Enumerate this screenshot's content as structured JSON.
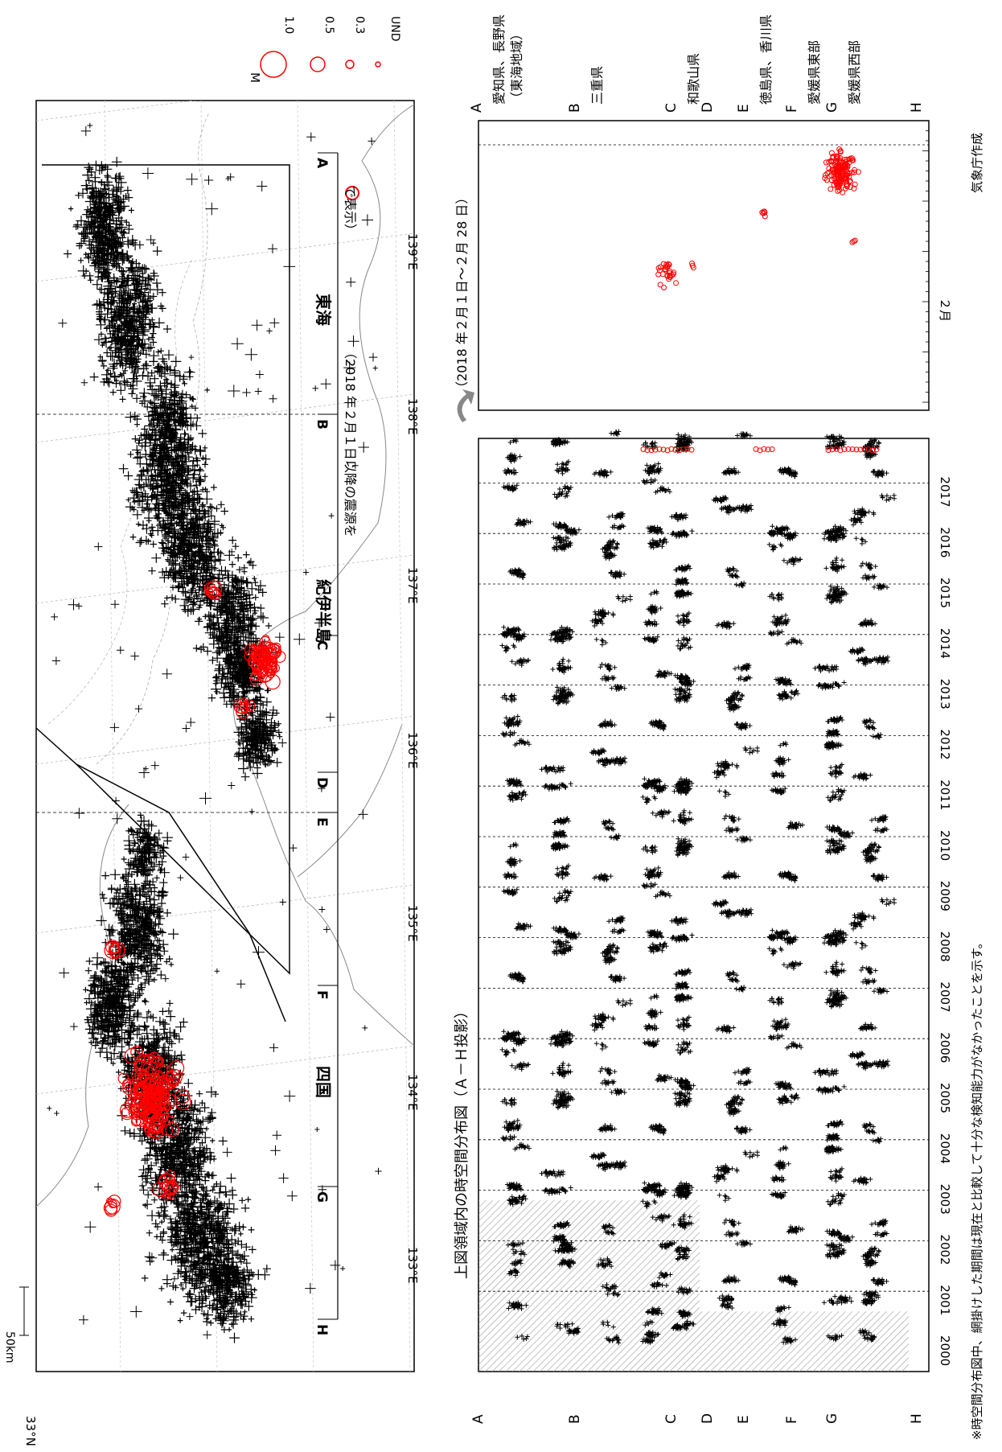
{
  "map": {
    "scale_label": "50km",
    "lat_label": "33°N",
    "lon_labels": [
      "133°E",
      "134°E",
      "135°E",
      "136°E",
      "137°E",
      "138°E",
      "139°E"
    ],
    "note": "（2018 年２月１日以降の震源を",
    "note_end": "で表示）",
    "region_labels": {
      "tokai": "東海",
      "kii": "紀伊半島",
      "shikoku": "四国"
    },
    "section_letters": [
      "A",
      "B",
      "C",
      "D",
      "E",
      "F",
      "G",
      "H"
    ],
    "legend_title": "M",
    "legend_items": [
      "1.0",
      "0.5",
      "0.3",
      "UND"
    ],
    "colors": {
      "past": "#000000",
      "recent": "#ff0000"
    }
  },
  "timeseries": {
    "title": "上図領域内の時空間分布図（Ａ－Ｈ投影）",
    "years": [
      "2000",
      "2001",
      "2002",
      "2003",
      "2004",
      "2005",
      "2006",
      "2007",
      "2008",
      "2009",
      "2010",
      "2011",
      "2012",
      "2013",
      "2014",
      "2015",
      "2016",
      "2017"
    ],
    "left_labels": [
      "A",
      "B",
      "C",
      "D",
      "E",
      "F",
      "G",
      "H"
    ]
  },
  "recent": {
    "title": "（2018 年２月１日～２月 28 日）",
    "month_label": "２月",
    "region_labels": [
      {
        "letter": "A",
        "text": "愛知県、長野県",
        "text2": "（東海地域）"
      },
      {
        "letter": "B",
        "text": "三重県"
      },
      {
        "letter": "C",
        "text": "和歌山県"
      },
      {
        "letter": "D",
        "text": ""
      },
      {
        "letter": "E",
        "text": "徳島県、香川県"
      },
      {
        "letter": "F",
        "text": "愛媛県東部"
      },
      {
        "letter": "G",
        "text": "愛媛県西部"
      },
      {
        "letter": "H",
        "text": ""
      }
    ]
  },
  "footnote": "※時空間分布図中、網掛けした期間は現在と比較して十分な検知能力がなかったことを示す。",
  "credit": "気象庁作成",
  "chart_data": [
    {
      "type": "scatter",
      "title": "",
      "xlabel": "",
      "ylabel": "",
      "x_ticks": [
        "133°E",
        "134°E",
        "135°E",
        "136°E",
        "137°E",
        "138°E",
        "139°E"
      ],
      "series": [
        {
          "name": "2018 年２月１日以降の震源",
          "clusters": [
            "愛媛県西部",
            "愛媛県東部",
            "和歌山県",
            "紀伊半島"
          ]
        }
      ]
    },
    {
      "type": "scatter",
      "title": "上図領域内の時空間分布図（Ａ－Ｈ投影）",
      "x": [
        "2000",
        "2001",
        "2002",
        "2003",
        "2004",
        "2005",
        "2006",
        "2007",
        "2008",
        "2009",
        "2010",
        "2011",
        "2012",
        "2013",
        "2014",
        "2015",
        "2016",
        "2017"
      ],
      "y_labels": [
        "A",
        "B",
        "C",
        "D",
        "E",
        "F",
        "G",
        "H"
      ],
      "shaded_period": [
        "2000",
        "2002"
      ]
    },
    {
      "type": "scatter",
      "title": "（2018 年２月１日～２月 28 日）",
      "x": [
        "２月"
      ],
      "y_labels": [
        "A",
        "B",
        "C",
        "D",
        "E",
        "F",
        "G",
        "H"
      ],
      "clusters": [
        "三重県",
        "徳島県、香川県",
        "愛媛県西部"
      ]
    }
  ]
}
